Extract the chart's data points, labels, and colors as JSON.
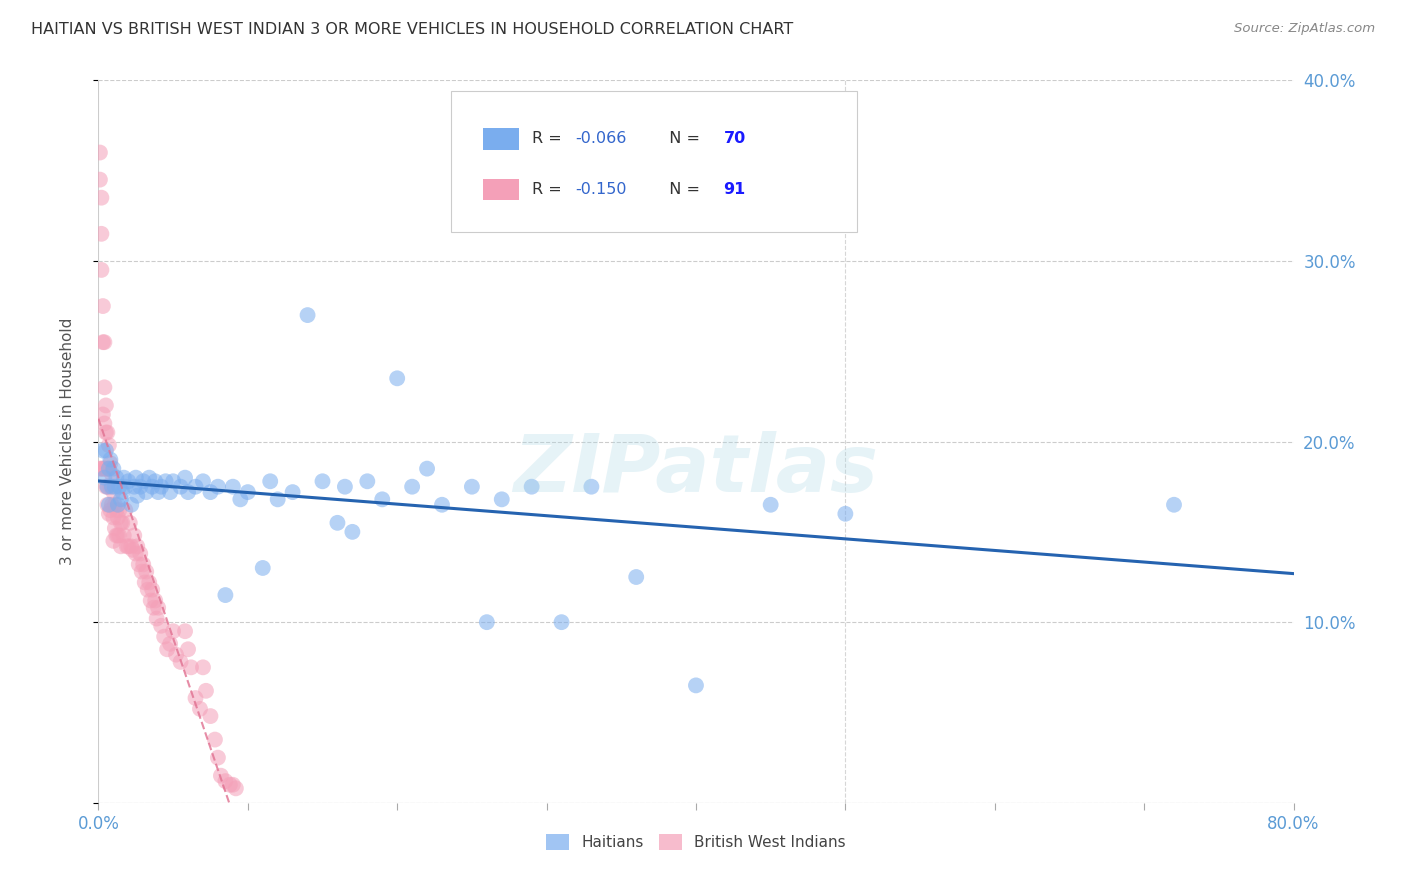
{
  "title": "HAITIAN VS BRITISH WEST INDIAN 3 OR MORE VEHICLES IN HOUSEHOLD CORRELATION CHART",
  "source": "Source: ZipAtlas.com",
  "ylabel": "3 or more Vehicles in Household",
  "xlim": [
    0.0,
    0.8
  ],
  "ylim": [
    0.0,
    0.4
  ],
  "haitian_color": "#7aadee",
  "bwi_color": "#f4a0b8",
  "haitian_R": "-0.066",
  "haitian_N": "70",
  "bwi_R": "-0.150",
  "bwi_N": "91",
  "legend_label_haitian": "Haitians",
  "legend_label_bwi": "British West Indians",
  "watermark": "ZIPatlas",
  "title_fontsize": 11.5,
  "axis_label_color": "#5b9bd5",
  "r_value_color": "#3366cc",
  "n_value_color": "#1a1aff",
  "background_color": "#ffffff",
  "grid_color": "#cccccc",
  "haitian_scatter_x": [
    0.003,
    0.004,
    0.005,
    0.006,
    0.007,
    0.007,
    0.008,
    0.009,
    0.01,
    0.011,
    0.012,
    0.013,
    0.014,
    0.015,
    0.016,
    0.017,
    0.018,
    0.02,
    0.022,
    0.024,
    0.025,
    0.026,
    0.028,
    0.03,
    0.032,
    0.034,
    0.036,
    0.038,
    0.04,
    0.042,
    0.045,
    0.048,
    0.05,
    0.055,
    0.058,
    0.06,
    0.065,
    0.07,
    0.075,
    0.08,
    0.085,
    0.09,
    0.095,
    0.1,
    0.11,
    0.115,
    0.12,
    0.13,
    0.14,
    0.15,
    0.16,
    0.165,
    0.17,
    0.18,
    0.19,
    0.2,
    0.21,
    0.22,
    0.23,
    0.25,
    0.26,
    0.27,
    0.29,
    0.31,
    0.33,
    0.36,
    0.4,
    0.45,
    0.5,
    0.72
  ],
  "haitian_scatter_y": [
    0.195,
    0.18,
    0.195,
    0.175,
    0.185,
    0.165,
    0.19,
    0.175,
    0.185,
    0.175,
    0.18,
    0.165,
    0.175,
    0.168,
    0.172,
    0.18,
    0.175,
    0.178,
    0.165,
    0.175,
    0.18,
    0.17,
    0.175,
    0.178,
    0.172,
    0.18,
    0.175,
    0.178,
    0.172,
    0.175,
    0.178,
    0.172,
    0.178,
    0.175,
    0.18,
    0.172,
    0.175,
    0.178,
    0.172,
    0.175,
    0.115,
    0.175,
    0.168,
    0.172,
    0.13,
    0.178,
    0.168,
    0.172,
    0.27,
    0.178,
    0.155,
    0.175,
    0.15,
    0.178,
    0.168,
    0.235,
    0.175,
    0.185,
    0.165,
    0.175,
    0.1,
    0.168,
    0.175,
    0.1,
    0.175,
    0.125,
    0.065,
    0.165,
    0.16,
    0.165
  ],
  "bwi_scatter_x": [
    0.001,
    0.001,
    0.001,
    0.002,
    0.002,
    0.002,
    0.002,
    0.003,
    0.003,
    0.003,
    0.003,
    0.004,
    0.004,
    0.004,
    0.004,
    0.005,
    0.005,
    0.005,
    0.005,
    0.006,
    0.006,
    0.006,
    0.006,
    0.007,
    0.007,
    0.007,
    0.008,
    0.008,
    0.008,
    0.009,
    0.009,
    0.01,
    0.01,
    0.01,
    0.011,
    0.011,
    0.012,
    0.012,
    0.013,
    0.013,
    0.014,
    0.014,
    0.015,
    0.015,
    0.016,
    0.017,
    0.018,
    0.019,
    0.02,
    0.021,
    0.022,
    0.023,
    0.024,
    0.025,
    0.026,
    0.027,
    0.028,
    0.029,
    0.03,
    0.031,
    0.032,
    0.033,
    0.034,
    0.035,
    0.036,
    0.037,
    0.038,
    0.039,
    0.04,
    0.042,
    0.044,
    0.046,
    0.048,
    0.05,
    0.052,
    0.055,
    0.058,
    0.06,
    0.062,
    0.065,
    0.068,
    0.07,
    0.072,
    0.075,
    0.078,
    0.08,
    0.082,
    0.085,
    0.088,
    0.09,
    0.092
  ],
  "bwi_scatter_y": [
    0.36,
    0.345,
    0.185,
    0.335,
    0.315,
    0.295,
    0.185,
    0.275,
    0.255,
    0.215,
    0.185,
    0.255,
    0.23,
    0.21,
    0.185,
    0.22,
    0.205,
    0.185,
    0.175,
    0.205,
    0.185,
    0.175,
    0.165,
    0.198,
    0.185,
    0.16,
    0.188,
    0.175,
    0.162,
    0.182,
    0.165,
    0.172,
    0.158,
    0.145,
    0.165,
    0.152,
    0.162,
    0.148,
    0.158,
    0.148,
    0.162,
    0.148,
    0.155,
    0.142,
    0.155,
    0.148,
    0.162,
    0.142,
    0.142,
    0.155,
    0.142,
    0.14,
    0.148,
    0.138,
    0.142,
    0.132,
    0.138,
    0.128,
    0.132,
    0.122,
    0.128,
    0.118,
    0.122,
    0.112,
    0.118,
    0.108,
    0.112,
    0.102,
    0.108,
    0.098,
    0.092,
    0.085,
    0.088,
    0.095,
    0.082,
    0.078,
    0.095,
    0.085,
    0.075,
    0.058,
    0.052,
    0.075,
    0.062,
    0.048,
    0.035,
    0.025,
    0.015,
    0.012,
    0.01,
    0.01,
    0.008
  ]
}
